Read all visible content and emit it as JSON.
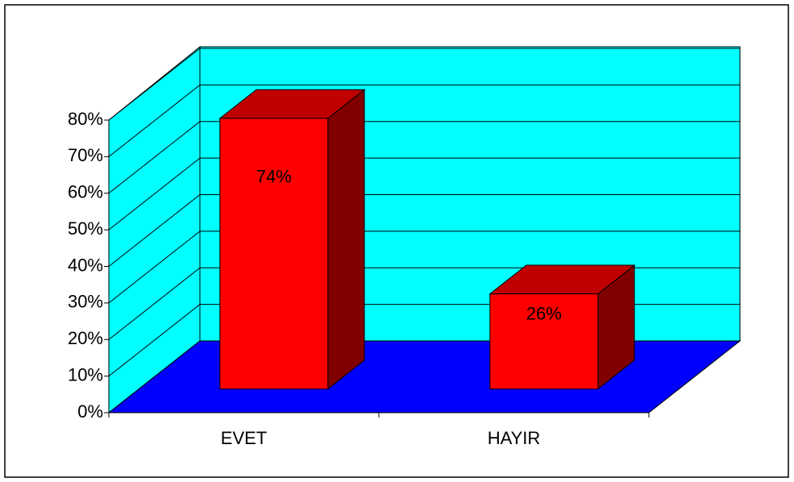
{
  "chart_data": {
    "type": "bar3d",
    "categories": [
      "EVET",
      "HAYIR"
    ],
    "values": [
      74,
      26
    ],
    "value_labels": [
      "74%",
      "26%"
    ],
    "ylim": [
      0,
      80
    ],
    "yticks": [
      {
        "value": 0,
        "label": "0%"
      },
      {
        "value": 10,
        "label": "10%"
      },
      {
        "value": 20,
        "label": "20%"
      },
      {
        "value": 30,
        "label": "30%"
      },
      {
        "value": 40,
        "label": "40%"
      },
      {
        "value": 50,
        "label": "50%"
      },
      {
        "value": 60,
        "label": "60%"
      },
      {
        "value": 70,
        "label": "70%"
      },
      {
        "value": 80,
        "label": "80%"
      }
    ],
    "grid": true,
    "color": "#ff0000",
    "wall_color": "#00ffff",
    "floor_color": "#0000ff"
  }
}
